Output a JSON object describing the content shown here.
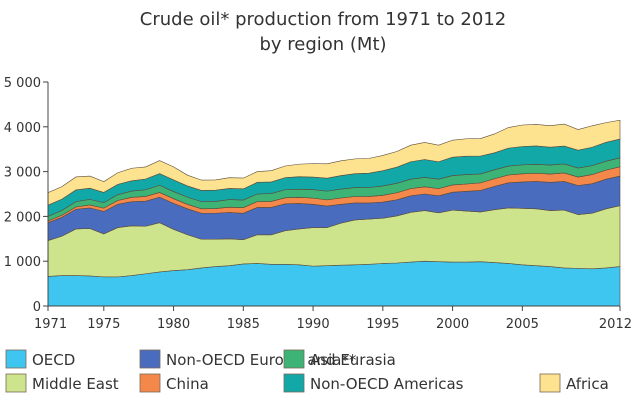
{
  "chart_data": {
    "type": "area",
    "stacked": true,
    "title_lines": [
      "Crude oil* production from 1971 to 2012",
      "by region (Mt)"
    ],
    "x": [
      1971,
      1972,
      1973,
      1974,
      1975,
      1976,
      1977,
      1978,
      1979,
      1980,
      1981,
      1982,
      1983,
      1984,
      1985,
      1986,
      1987,
      1988,
      1989,
      1990,
      1991,
      1992,
      1993,
      1994,
      1995,
      1996,
      1997,
      1998,
      1999,
      2000,
      2001,
      2002,
      2003,
      2004,
      2005,
      2006,
      2007,
      2008,
      2009,
      2010,
      2011,
      2012
    ],
    "xlim": [
      1971,
      2012
    ],
    "ylim": [
      0,
      5000
    ],
    "x_ticks": [
      {
        "value": 1971,
        "label": "1971"
      },
      {
        "value": 1975,
        "label": "1975"
      },
      {
        "value": 1980,
        "label": "1980"
      },
      {
        "value": 1985,
        "label": "1985"
      },
      {
        "value": 1990,
        "label": "1990"
      },
      {
        "value": 1995,
        "label": "1995"
      },
      {
        "value": 2000,
        "label": "2000"
      },
      {
        "value": 2005,
        "label": "2005"
      },
      {
        "value": 2012,
        "label": "2012"
      }
    ],
    "y_ticks": [
      {
        "value": 0,
        "label": "0"
      },
      {
        "value": 1000,
        "label": "1 000"
      },
      {
        "value": 2000,
        "label": "2 000"
      },
      {
        "value": 3000,
        "label": "3 000"
      },
      {
        "value": 4000,
        "label": "4 000"
      },
      {
        "value": 5000,
        "label": "5 000"
      }
    ],
    "series": [
      {
        "name": "OECD",
        "color": "#3ec6f0",
        "values": [
          660,
          680,
          680,
          670,
          650,
          650,
          680,
          720,
          760,
          790,
          810,
          850,
          880,
          900,
          940,
          950,
          930,
          930,
          920,
          890,
          900,
          910,
          920,
          930,
          950,
          960,
          980,
          1000,
          990,
          980,
          980,
          990,
          970,
          950,
          920,
          900,
          880,
          850,
          840,
          830,
          850,
          880
        ]
      },
      {
        "name": "Middle East",
        "color": "#cde38c",
        "values": [
          800,
          880,
          1040,
          1060,
          960,
          1100,
          1110,
          1060,
          1100,
          920,
          780,
          640,
          610,
          600,
          540,
          640,
          660,
          750,
          800,
          860,
          850,
          940,
          1000,
          1010,
          1010,
          1050,
          1110,
          1130,
          1090,
          1160,
          1140,
          1110,
          1180,
          1240,
          1260,
          1270,
          1250,
          1290,
          1200,
          1240,
          1320,
          1360
        ]
      },
      {
        "name": "Non-OECD Europe and Eurasia",
        "color": "#4a6cbf",
        "values": [
          400,
          420,
          440,
          460,
          500,
          520,
          540,
          560,
          570,
          580,
          580,
          580,
          580,
          590,
          590,
          610,
          610,
          600,
          570,
          520,
          480,
          420,
          380,
          360,
          360,
          360,
          370,
          370,
          380,
          400,
          440,
          480,
          520,
          560,
          590,
          610,
          630,
          640,
          650,
          660,
          660,
          660
        ]
      },
      {
        "name": "China",
        "color": "#f4874a",
        "values": [
          40,
          45,
          50,
          65,
          75,
          85,
          95,
          105,
          105,
          105,
          100,
          100,
          105,
          115,
          125,
          130,
          135,
          135,
          137,
          138,
          139,
          141,
          144,
          145,
          150,
          158,
          160,
          160,
          160,
          162,
          163,
          168,
          170,
          174,
          180,
          183,
          186,
          190,
          189,
          203,
          203,
          207
        ]
      },
      {
        "name": "Asia**",
        "color": "#3db376",
        "values": [
          100,
          110,
          120,
          125,
          120,
          130,
          140,
          150,
          160,
          160,
          160,
          160,
          160,
          170,
          170,
          170,
          175,
          180,
          180,
          190,
          195,
          200,
          200,
          200,
          210,
          210,
          210,
          210,
          210,
          210,
          210,
          200,
          200,
          200,
          200,
          200,
          200,
          200,
          200,
          200,
          200,
          200
        ]
      },
      {
        "name": "Non-OECD Americas",
        "color": "#13a8a8",
        "values": [
          250,
          250,
          260,
          250,
          230,
          230,
          230,
          240,
          260,
          260,
          250,
          250,
          250,
          250,
          250,
          260,
          260,
          270,
          280,
          280,
          290,
          300,
          310,
          320,
          340,
          360,
          390,
          400,
          390,
          410,
          410,
          400,
          380,
          400,
          410,
          410,
          400,
          400,
          400,
          410,
          420,
          420
        ]
      },
      {
        "name": "Africa",
        "color": "#fde38f",
        "values": [
          280,
          280,
          290,
          270,
          240,
          260,
          280,
          270,
          290,
          290,
          240,
          230,
          230,
          240,
          240,
          240,
          250,
          260,
          280,
          300,
          320,
          330,
          330,
          330,
          340,
          350,
          370,
          380,
          370,
          380,
          390,
          390,
          420,
          460,
          480,
          480,
          480,
          490,
          460,
          480,
          440,
          420
        ]
      }
    ],
    "legend": [
      {
        "key": "oecd",
        "label": "OECD",
        "color": "#3ec6f0"
      },
      {
        "key": "middle-east",
        "label": "Middle East",
        "color": "#cde38c"
      },
      {
        "key": "non-oecd-europe-eurasia",
        "label": "Non-OECD Europe and Eurasia",
        "color": "#4a6cbf"
      },
      {
        "key": "china",
        "label": "China",
        "color": "#f4874a"
      },
      {
        "key": "asia",
        "label": "Asia**",
        "color": "#3db376"
      },
      {
        "key": "non-oecd-americas",
        "label": "Non-OECD Americas",
        "color": "#13a8a8"
      },
      {
        "key": "africa",
        "label": "Africa",
        "color": "#fde38f"
      }
    ],
    "grid": false,
    "legend_position": "bottom"
  }
}
